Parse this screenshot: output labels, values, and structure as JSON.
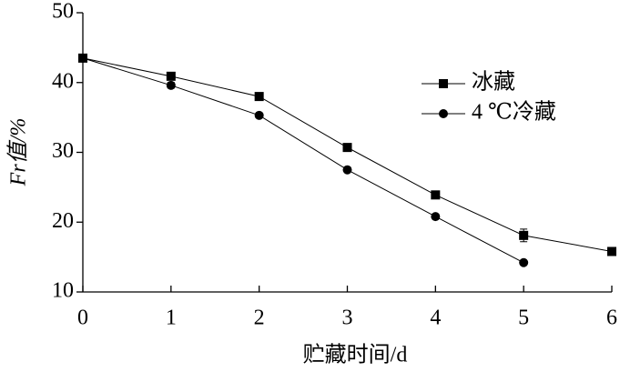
{
  "chart_data": {
    "type": "line",
    "x_label": "贮藏时间/d",
    "y_label": "Fr值/%",
    "x": [
      0,
      1,
      2,
      3,
      4,
      5,
      6
    ],
    "xlim": [
      0,
      6
    ],
    "xticks": [
      0,
      1,
      2,
      3,
      4,
      5,
      6
    ],
    "ylim": [
      10,
      50
    ],
    "yticks": [
      10,
      20,
      30,
      40,
      50
    ],
    "grid": false,
    "legend": "upper right",
    "series": [
      {
        "name": "冰藏",
        "color": "#000000",
        "marker": "square",
        "values": [
          43.5,
          40.9,
          38.0,
          30.7,
          23.9,
          18.1,
          15.8
        ],
        "errors": [
          0.3,
          0.4,
          0.3,
          0.4,
          0.4,
          0.9,
          0.3
        ]
      },
      {
        "name": "4 ℃冷藏",
        "color": "#000000",
        "marker": "circle",
        "values": [
          43.5,
          39.6,
          35.3,
          27.5,
          20.8,
          14.2,
          null
        ],
        "errors": [
          0.3,
          0.4,
          0.3,
          0.3,
          0.3,
          0.3,
          null
        ]
      }
    ]
  }
}
